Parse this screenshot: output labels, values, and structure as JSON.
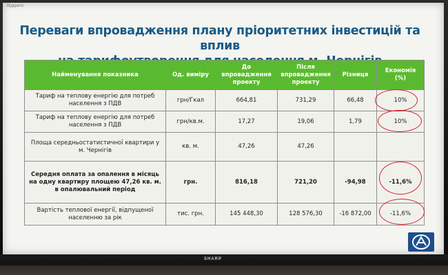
{
  "screen_corner_text": "Відкрито",
  "title_line1": "Переваги впровадження плану пріоритетних інвестицій та вплив",
  "title_line2": "на тарифоутворення для населення м. Чернігів",
  "table": {
    "headers": [
      "Найменування показника",
      "Од. виміру",
      "До впровадження проекту",
      "Після впровадження проекту",
      "Різниця",
      "Економія (%)"
    ],
    "rows": [
      {
        "name": "Тариф на теплову енергію для потреб населення з ПДВ",
        "unit": "грн/Гкал",
        "before": "664,81",
        "after": "731,29",
        "diff": "66,48",
        "economy": "10%"
      },
      {
        "name": "Тариф на теплову енергію для потреб населення з ПДВ",
        "unit": "грн/кв.м.",
        "before": "17,27",
        "after": "19,06",
        "diff": "1,79",
        "economy": "10%"
      },
      {
        "name": "Площа середньостатистичної квартири у м. Чернігів",
        "unit": "кв. м.",
        "before": "47,26",
        "after": "47,26",
        "diff": "",
        "economy": ""
      },
      {
        "name": "Середня оплата за опалення в місяць на одну квартиру площею 47,26 кв. м. в опалювальний період",
        "unit": "грн.",
        "before": "816,18",
        "after": "721,20",
        "diff": "-94,98",
        "economy": "-11,6%"
      },
      {
        "name": "Вартість теплової енергії, відпущеної населенню за рік",
        "unit": "тис. грн.",
        "before": "145 448,30",
        "after": "128 576,30",
        "diff": "-16 872,00",
        "economy": "-11,6%"
      }
    ]
  },
  "brand": "SHARP",
  "colors": {
    "title": "#1a5a86",
    "header_bg": "#5aba2f",
    "annotation": "#d8202a",
    "logo_bg": "#1e4f8c"
  }
}
